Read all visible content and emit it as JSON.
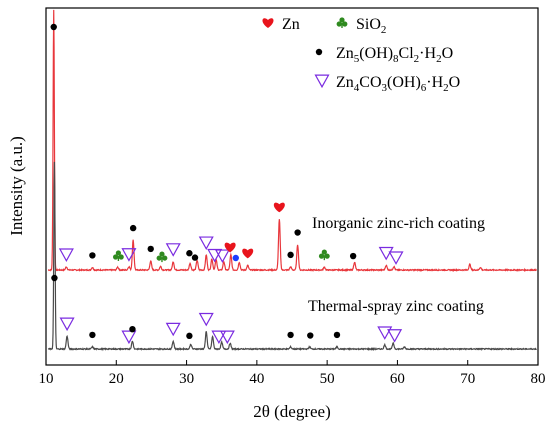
{
  "chart_data": {
    "type": "line",
    "xlabel": "2θ (degree)",
    "ylabel": "Intensity (a.u.)",
    "xlim": [
      10,
      80
    ],
    "xticks": [
      10,
      20,
      30,
      40,
      50,
      60,
      70,
      80
    ],
    "yticks_shown": false,
    "legend": {
      "placement": "top-right",
      "entries": [
        {
          "marker": "heart",
          "color": "#e8141c",
          "label_parts": [
            [
              "Zn",
              ""
            ]
          ]
        },
        {
          "marker": "club",
          "color": "#2f8a1f",
          "label_parts": [
            [
              "SiO",
              ""
            ],
            [
              "2",
              "sub"
            ]
          ]
        },
        {
          "marker": "dot",
          "color": "#000000",
          "label_parts": [
            [
              "Zn",
              ""
            ],
            [
              "5",
              "sub"
            ],
            [
              "(OH)",
              ""
            ],
            [
              "8",
              "sub"
            ],
            [
              "Cl",
              ""
            ],
            [
              "2",
              "sub"
            ],
            [
              "·H",
              ""
            ],
            [
              "2",
              "sub"
            ],
            [
              "O",
              ""
            ]
          ]
        },
        {
          "marker": "triangle-down",
          "color": "#7a2be0",
          "label_parts": [
            [
              "Zn",
              ""
            ],
            [
              "4",
              "sub"
            ],
            [
              "CO",
              ""
            ],
            [
              "3",
              "sub"
            ],
            [
              "(OH)",
              ""
            ],
            [
              "6",
              "sub"
            ],
            [
              "·H",
              ""
            ],
            [
              "2",
              "sub"
            ],
            [
              "O",
              ""
            ]
          ]
        }
      ]
    },
    "series": [
      {
        "name": "Inorganic zinc-rich coating",
        "color": "#e8373c",
        "baseline": 270,
        "peaks": [
          {
            "x": 11.1,
            "y": 1000
          },
          {
            "x": 12.9,
            "y": 12
          },
          {
            "x": 16.6,
            "y": 10
          },
          {
            "x": 20.2,
            "y": 11
          },
          {
            "x": 21.8,
            "y": 13
          },
          {
            "x": 22.4,
            "y": 115
          },
          {
            "x": 24.9,
            "y": 35
          },
          {
            "x": 26.3,
            "y": 14
          },
          {
            "x": 28.1,
            "y": 32
          },
          {
            "x": 30.5,
            "y": 26
          },
          {
            "x": 31.5,
            "y": 37
          },
          {
            "x": 32.8,
            "y": 58
          },
          {
            "x": 33.6,
            "y": 43
          },
          {
            "x": 34.2,
            "y": 40
          },
          {
            "x": 35.3,
            "y": 32
          },
          {
            "x": 36.3,
            "y": 58
          },
          {
            "x": 37.5,
            "y": 30
          },
          {
            "x": 38.7,
            "y": 18
          },
          {
            "x": 43.2,
            "y": 195
          },
          {
            "x": 44.8,
            "y": 12
          },
          {
            "x": 45.8,
            "y": 98
          },
          {
            "x": 49.6,
            "y": 11
          },
          {
            "x": 53.9,
            "y": 30
          },
          {
            "x": 58.4,
            "y": 18
          },
          {
            "x": 59.5,
            "y": 13
          },
          {
            "x": 70.3,
            "y": 22
          },
          {
            "x": 71.8,
            "y": 10
          }
        ]
      },
      {
        "name": "Thermal-spray zinc coating",
        "color": "#4a4a4a",
        "baseline": 0,
        "peaks": [
          {
            "x": 11.2,
            "y": 720
          },
          {
            "x": 13.0,
            "y": 50
          },
          {
            "x": 16.6,
            "y": 8
          },
          {
            "x": 22.3,
            "y": 30
          },
          {
            "x": 28.1,
            "y": 30
          },
          {
            "x": 30.6,
            "y": 18
          },
          {
            "x": 32.8,
            "y": 68
          },
          {
            "x": 33.7,
            "y": 48
          },
          {
            "x": 35.0,
            "y": 26
          },
          {
            "x": 36.2,
            "y": 22
          },
          {
            "x": 44.8,
            "y": 8
          },
          {
            "x": 47.5,
            "y": 8
          },
          {
            "x": 51.4,
            "y": 8
          },
          {
            "x": 58.2,
            "y": 16
          },
          {
            "x": 59.4,
            "y": 22
          },
          {
            "x": 61.0,
            "y": 8
          }
        ]
      }
    ],
    "markers": [
      {
        "series": 0,
        "x": 11.1,
        "type": "dot"
      },
      {
        "series": 0,
        "x": 12.9,
        "type": "triangle-down"
      },
      {
        "series": 0,
        "x": 16.6,
        "type": "dot"
      },
      {
        "series": 0,
        "x": 20.3,
        "type": "club"
      },
      {
        "series": 0,
        "x": 21.8,
        "type": "triangle-down"
      },
      {
        "series": 0,
        "x": 22.4,
        "type": "dot"
      },
      {
        "series": 0,
        "x": 24.9,
        "type": "dot"
      },
      {
        "series": 0,
        "x": 26.5,
        "type": "club"
      },
      {
        "series": 0,
        "x": 28.1,
        "type": "triangle-down"
      },
      {
        "series": 0,
        "x": 30.4,
        "type": "dot"
      },
      {
        "series": 0,
        "x": 31.2,
        "type": "dot"
      },
      {
        "series": 0,
        "x": 32.8,
        "type": "triangle-down"
      },
      {
        "series": 0,
        "x": 34.0,
        "type": "triangle-down"
      },
      {
        "series": 0,
        "x": 35.1,
        "type": "triangle-down"
      },
      {
        "series": 0,
        "x": 36.2,
        "type": "heart"
      },
      {
        "series": 0,
        "x": 37.0,
        "type": "dot-blue"
      },
      {
        "series": 0,
        "x": 38.7,
        "type": "heart"
      },
      {
        "series": 0,
        "x": 43.2,
        "type": "heart"
      },
      {
        "series": 0,
        "x": 44.8,
        "type": "dot"
      },
      {
        "series": 0,
        "x": 45.8,
        "type": "dot"
      },
      {
        "series": 0,
        "x": 49.6,
        "type": "club"
      },
      {
        "series": 0,
        "x": 53.7,
        "type": "dot"
      },
      {
        "series": 0,
        "x": 58.4,
        "type": "triangle-down"
      },
      {
        "series": 0,
        "x": 59.8,
        "type": "triangle-down"
      },
      {
        "series": 1,
        "x": 11.2,
        "type": "dot"
      },
      {
        "series": 1,
        "x": 13.0,
        "type": "triangle-down"
      },
      {
        "series": 1,
        "x": 16.6,
        "type": "dot"
      },
      {
        "series": 1,
        "x": 21.8,
        "type": "triangle-down"
      },
      {
        "series": 1,
        "x": 22.3,
        "type": "dot"
      },
      {
        "series": 1,
        "x": 28.1,
        "type": "triangle-down"
      },
      {
        "series": 1,
        "x": 30.4,
        "type": "dot"
      },
      {
        "series": 1,
        "x": 32.8,
        "type": "triangle-down"
      },
      {
        "series": 1,
        "x": 34.6,
        "type": "triangle-down"
      },
      {
        "series": 1,
        "x": 35.8,
        "type": "triangle-down"
      },
      {
        "series": 1,
        "x": 44.8,
        "type": "dot"
      },
      {
        "series": 1,
        "x": 47.6,
        "type": "dot"
      },
      {
        "series": 1,
        "x": 51.4,
        "type": "dot"
      },
      {
        "series": 1,
        "x": 58.2,
        "type": "triangle-down"
      },
      {
        "series": 1,
        "x": 59.6,
        "type": "triangle-down"
      }
    ]
  }
}
